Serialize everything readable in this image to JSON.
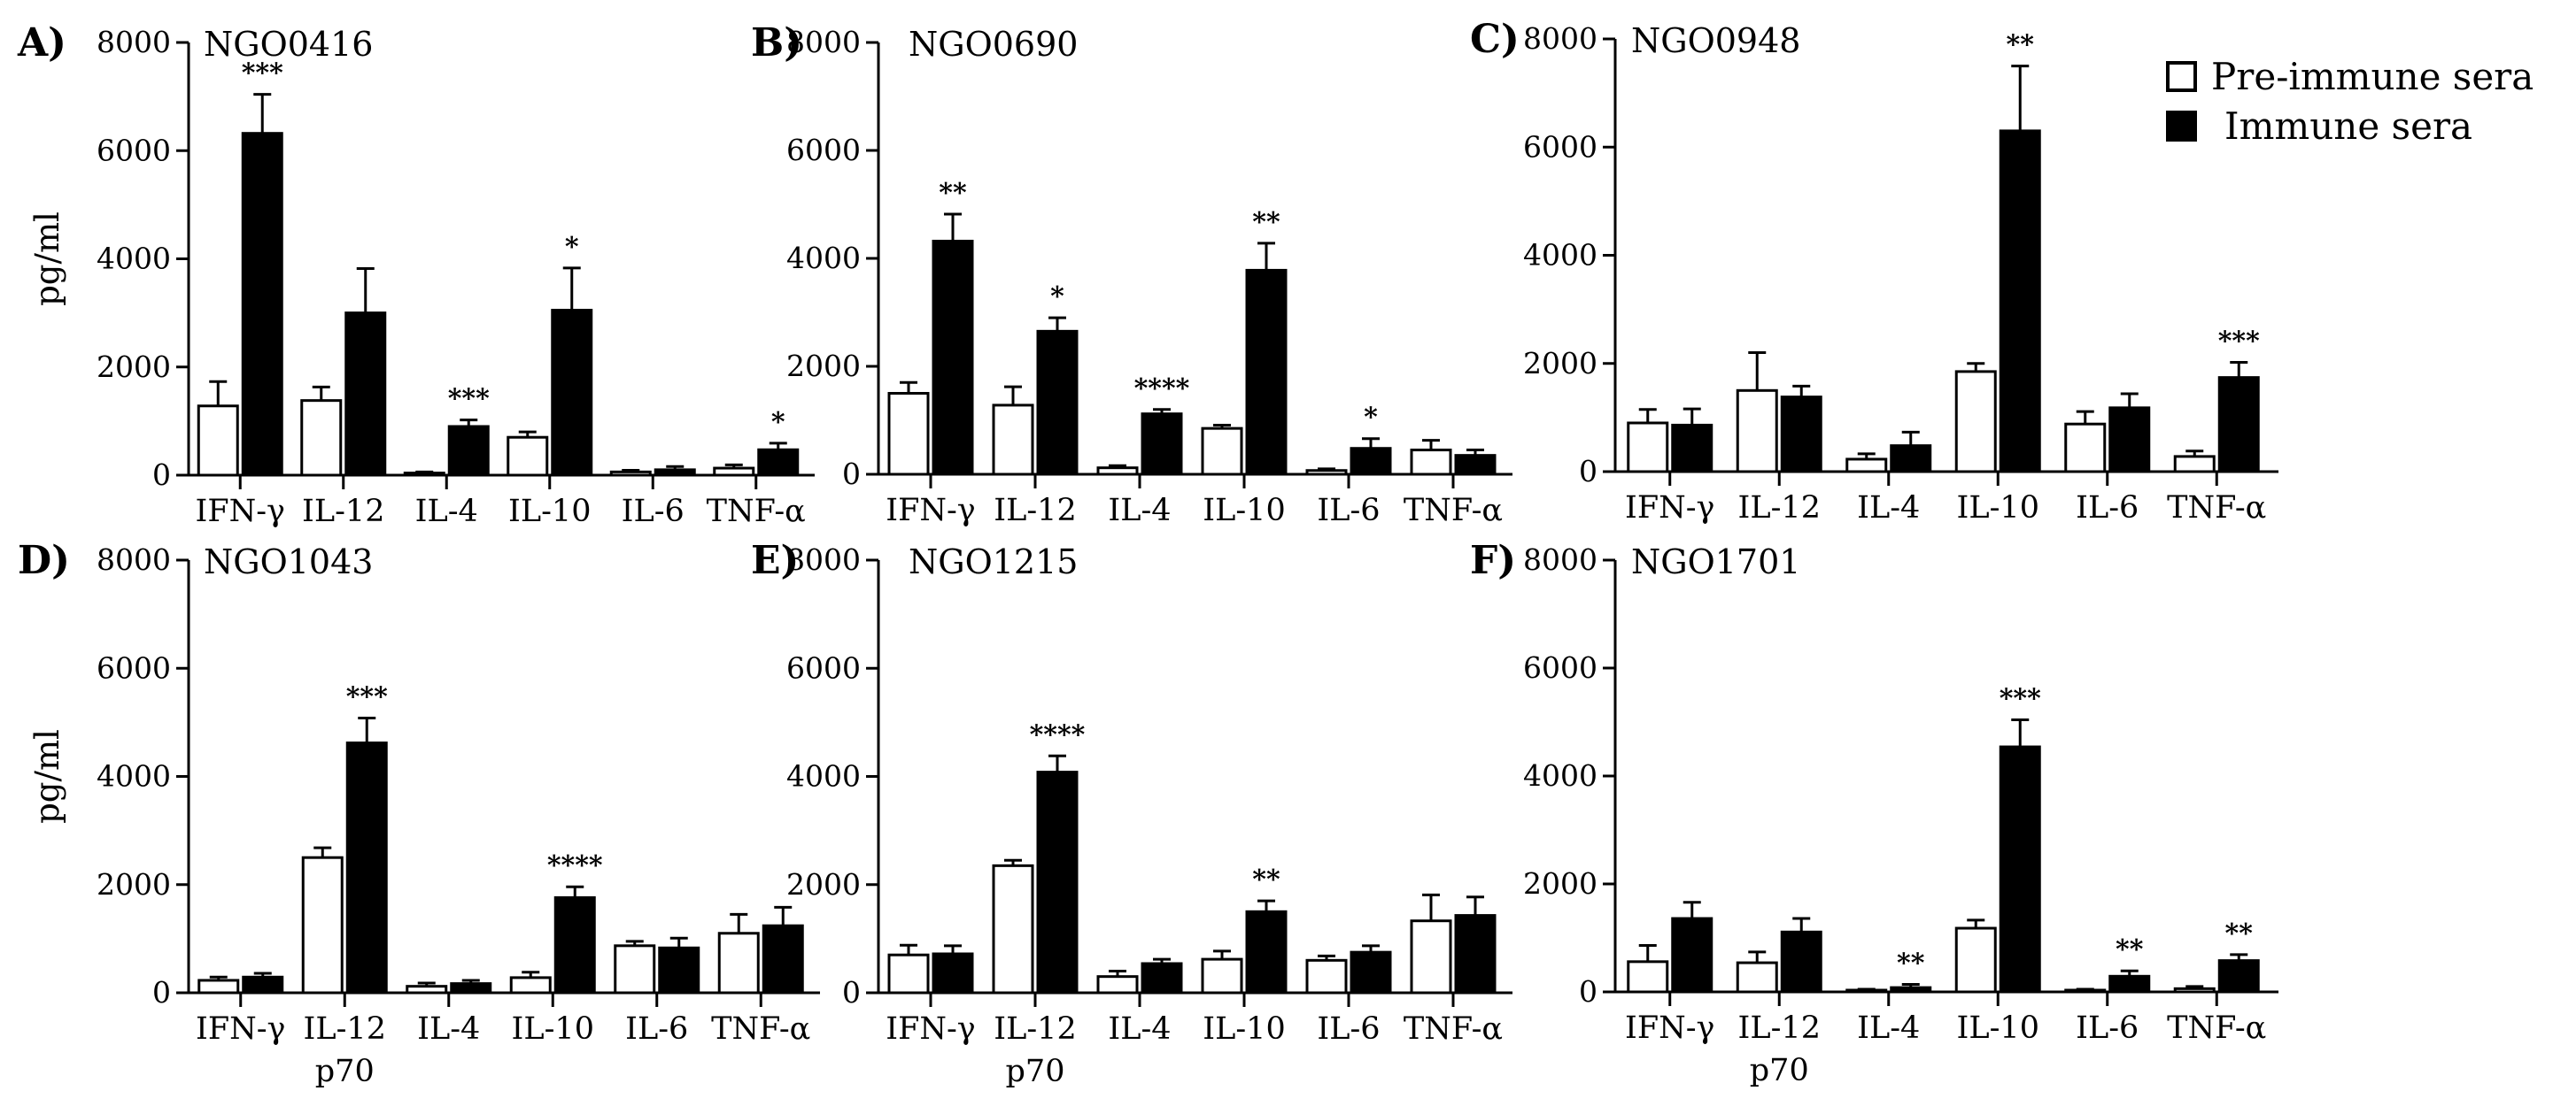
{
  "legend": {
    "pre_label": "Pre-immune sera",
    "imm_label": "Immune sera",
    "pre_color": "#ffffff",
    "imm_color": "#000000"
  },
  "chart_data": [
    {
      "type": "bar",
      "panel": "A)",
      "title": "NGO0416",
      "ylabel": "pg/ml",
      "ylim": [
        0,
        8000
      ],
      "yticks": [
        "0",
        "2000",
        "4000",
        "6000",
        "8000"
      ],
      "categories": [
        "IFN-γ",
        "IL-12",
        "IL-4",
        "IL-10",
        "IL-6",
        "TNF-α"
      ],
      "category_sublabel": "",
      "series": [
        {
          "name": "Pre-immune sera",
          "values": [
            1280,
            1380,
            40,
            700,
            60,
            130
          ],
          "errors": [
            450,
            250,
            20,
            100,
            30,
            60
          ]
        },
        {
          "name": "Immune sera",
          "values": [
            6320,
            3000,
            900,
            3050,
            100,
            470
          ],
          "errors": [
            720,
            820,
            120,
            780,
            60,
            120
          ]
        }
      ],
      "significance": [
        "***",
        "",
        "***",
        "*",
        "",
        "*"
      ]
    },
    {
      "type": "bar",
      "panel": "B)",
      "title": "NGO0690",
      "ylabel": "",
      "ylim": [
        0,
        8000
      ],
      "yticks": [
        "0",
        "2000",
        "4000",
        "6000",
        "8000"
      ],
      "categories": [
        "IFN-γ",
        "IL-12",
        "IL-4",
        "IL-10",
        "IL-6",
        "TNF-α"
      ],
      "category_sublabel": "",
      "series": [
        {
          "name": "Pre-immune sera",
          "values": [
            1500,
            1280,
            120,
            850,
            70,
            450
          ],
          "errors": [
            200,
            340,
            40,
            60,
            30,
            180
          ]
        },
        {
          "name": "Immune sera",
          "values": [
            4320,
            2650,
            1120,
            3780,
            480,
            350
          ],
          "errors": [
            500,
            250,
            80,
            500,
            180,
            100
          ]
        }
      ],
      "significance": [
        "**",
        "*",
        "****",
        "**",
        "*",
        ""
      ]
    },
    {
      "type": "bar",
      "panel": "C)",
      "title": "NGO0948",
      "ylabel": "",
      "ylim": [
        0,
        8000
      ],
      "yticks": [
        "0",
        "2000",
        "4000",
        "6000",
        "8000"
      ],
      "categories": [
        "IFN-γ",
        "IL-12",
        "IL-4",
        "IL-10",
        "IL-6",
        "TNF-α"
      ],
      "category_sublabel": "",
      "series": [
        {
          "name": "Pre-immune sera",
          "values": [
            900,
            1500,
            230,
            1850,
            880,
            280
          ],
          "errors": [
            250,
            700,
            100,
            150,
            230,
            100
          ]
        },
        {
          "name": "Immune sera",
          "values": [
            860,
            1380,
            480,
            6300,
            1180,
            1740
          ],
          "errors": [
            300,
            200,
            250,
            1200,
            260,
            280
          ]
        }
      ],
      "significance": [
        "",
        "",
        "",
        "**",
        "",
        "***"
      ]
    },
    {
      "type": "bar",
      "panel": "D)",
      "title": "NGO1043",
      "ylabel": "pg/ml",
      "ylim": [
        0,
        8000
      ],
      "yticks": [
        "0",
        "2000",
        "4000",
        "6000",
        "8000"
      ],
      "categories": [
        "IFN-γ",
        "IL-12",
        "IL-4",
        "IL-10",
        "IL-6",
        "TNF-α"
      ],
      "category_sublabel": "p70",
      "series": [
        {
          "name": "Pre-immune sera",
          "values": [
            230,
            2500,
            120,
            280,
            870,
            1100
          ],
          "errors": [
            60,
            180,
            60,
            100,
            80,
            350
          ]
        },
        {
          "name": "Immune sera",
          "values": [
            290,
            4620,
            170,
            1760,
            830,
            1240
          ],
          "errors": [
            70,
            460,
            60,
            200,
            180,
            340
          ]
        }
      ],
      "significance": [
        "",
        "***",
        "",
        "****",
        "",
        ""
      ]
    },
    {
      "type": "bar",
      "panel": "E)",
      "title": "NGO1215",
      "ylabel": "",
      "ylim": [
        0,
        8000
      ],
      "yticks": [
        "0",
        "2000",
        "4000",
        "6000",
        "8000"
      ],
      "categories": [
        "IFN-γ",
        "IL-12",
        "IL-4",
        "IL-10",
        "IL-6",
        "TNF-α"
      ],
      "category_sublabel": "p70",
      "series": [
        {
          "name": "Pre-immune sera",
          "values": [
            700,
            2350,
            300,
            620,
            600,
            1330
          ],
          "errors": [
            180,
            100,
            100,
            150,
            80,
            480
          ]
        },
        {
          "name": "Immune sera",
          "values": [
            720,
            4080,
            540,
            1500,
            750,
            1430
          ],
          "errors": [
            150,
            300,
            80,
            200,
            120,
            340
          ]
        }
      ],
      "significance": [
        "",
        "****",
        "",
        "**",
        "",
        ""
      ]
    },
    {
      "type": "bar",
      "panel": "F)",
      "title": "NGO1701",
      "ylabel": "",
      "ylim": [
        0,
        8000
      ],
      "yticks": [
        "0",
        "2000",
        "4000",
        "6000",
        "8000"
      ],
      "categories": [
        "IFN-γ",
        "IL-12",
        "IL-4",
        "IL-10",
        "IL-6",
        "TNF-α"
      ],
      "category_sublabel": "p70",
      "series": [
        {
          "name": "Pre-immune sera",
          "values": [
            560,
            540,
            30,
            1180,
            30,
            60
          ],
          "errors": [
            300,
            200,
            20,
            150,
            20,
            40
          ]
        },
        {
          "name": "Immune sera",
          "values": [
            1360,
            1110,
            80,
            4540,
            290,
            580
          ],
          "errors": [
            300,
            250,
            60,
            500,
            100,
            110
          ]
        }
      ],
      "significance": [
        "",
        "",
        "**",
        "***",
        "**",
        "**"
      ]
    }
  ]
}
